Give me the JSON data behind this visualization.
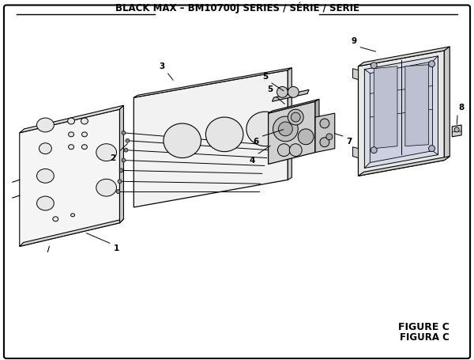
{
  "title": "BLACK MAX – BM10700J SERIES / SÉRIE / SERIE",
  "figure_label": "FIGURE C",
  "figura_label": "FIGURA C",
  "bg_color": "#ffffff",
  "line_color": "#000000",
  "fill_light": "#f0f0f0",
  "fill_mid": "#d8d8d8",
  "fill_dark": "#c0c0c0",
  "title_fontsize": 8.5,
  "figure_fontsize": 9
}
